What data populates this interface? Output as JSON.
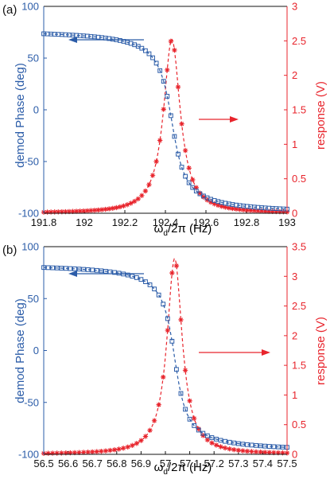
{
  "colors": {
    "phase": "#2b5ca8",
    "response": "#e8242c",
    "axis": "#111111"
  },
  "chart_data": [
    {
      "type": "scatter",
      "panel_label": "(a)",
      "xlabel_pre": "ω",
      "xlabel_sub": "d",
      "xlabel_post": "/2π (Hz)",
      "ylabel_left": "demod Phase  (deg)",
      "ylabel_right": "response (V)",
      "xlim": [
        191.8,
        193
      ],
      "ylim_left": [
        -100,
        100
      ],
      "ylim_right": [
        0,
        3
      ],
      "xticks": [
        "191.8",
        "192",
        "192.2",
        "192.4",
        "192.6",
        "192.8",
        "193"
      ],
      "yticks_left": [
        "100",
        "50",
        "0",
        "-50",
        "-100"
      ],
      "yticks_right": [
        "3",
        "2.5",
        "2",
        "1.5",
        "1",
        "0.5",
        "0"
      ],
      "f0": 192.432,
      "halfwidth": 0.05,
      "peak": 2.52,
      "phase_max": 78,
      "phase_min": -101,
      "n_points": 68
    },
    {
      "type": "scatter",
      "panel_label": "(b)",
      "xlabel_pre": "ω",
      "xlabel_sub": "d",
      "xlabel_post": "/2π (Hz)",
      "ylabel_left": "demod Phase  (deg)",
      "ylabel_right": "response (V)",
      "xlim": [
        56.5,
        57.5
      ],
      "ylim_left": [
        -100,
        100
      ],
      "ylim_right": [
        0,
        3.5
      ],
      "xticks": [
        "56.5",
        "56.6",
        "56.7",
        "56.8",
        "56.9",
        "57",
        "57.1",
        "57.2",
        "57.3",
        "57.4",
        "57.5"
      ],
      "yticks_left": [
        "100",
        "50",
        "0",
        "-50",
        "-100"
      ],
      "yticks_right": [
        "3.5",
        "3",
        "2.5",
        "2",
        "1.5",
        "1",
        "0.5",
        "0"
      ],
      "f0": 57.038,
      "halfwidth": 0.038,
      "peak": 3.3,
      "phase_max": 84,
      "phase_min": -98,
      "n_points": 56
    }
  ]
}
